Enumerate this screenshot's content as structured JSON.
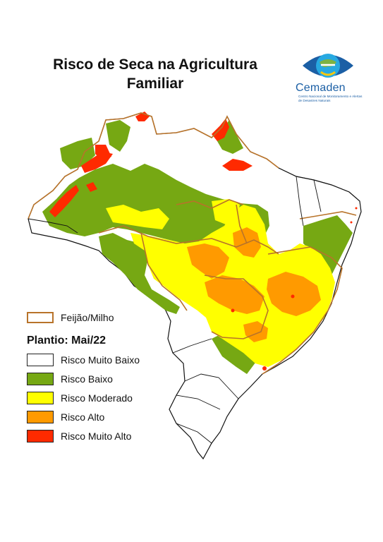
{
  "title": {
    "line1": "Risco de Seca na Agricultura",
    "line2": "Familiar"
  },
  "logo": {
    "brand": "Cemaden",
    "subtitle": "Centro Nacional de Monitoramento e Alertas de Desastres Naturais",
    "icon": "eye-globe-icon",
    "colors": {
      "blue": "#1b5fa5",
      "cyan": "#27a9e1",
      "green": "#7cb342",
      "yellow": "#f9c80e"
    }
  },
  "legend": {
    "boundary_label": "Feijão/Milho",
    "period_label": "Plantio: Mai/22",
    "classes": [
      {
        "label": "Risco Muito Baixo",
        "color": "#ffffff"
      },
      {
        "label": "Risco Baixo",
        "color": "#76a813"
      },
      {
        "label": "Risco Moderado",
        "color": "#ffff00"
      },
      {
        "label": "Risco Alto",
        "color": "#ff9a00"
      },
      {
        "label": "Risco Muito Alto",
        "color": "#ff2a00"
      }
    ],
    "boundary_color": "#b8732a"
  }
}
